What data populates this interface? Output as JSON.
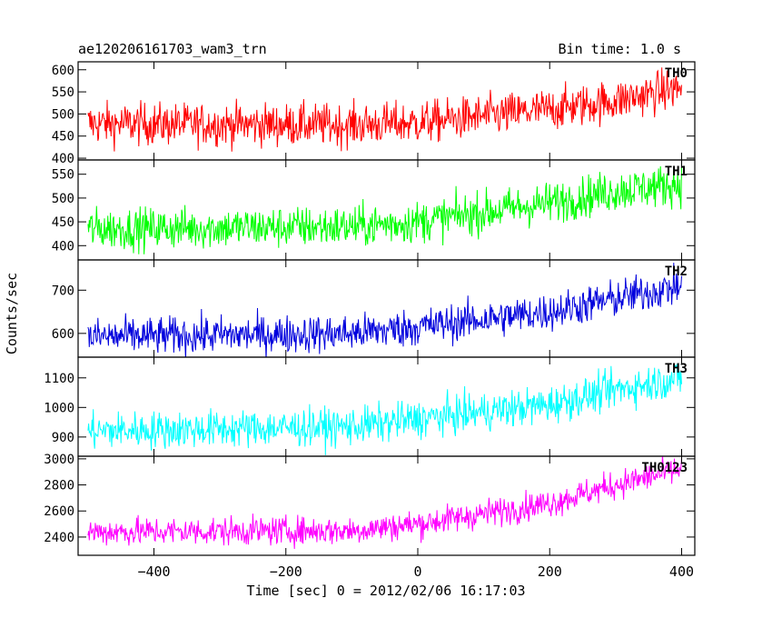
{
  "header": {
    "title": "ae120206161703_wam3_trn",
    "bin_time": "Bin time: 1.0 s"
  },
  "chart_data": {
    "type": "line",
    "xlabel": "Time [sec] 0 = 2012/02/06 16:17:03",
    "ylabel": "Counts/sec",
    "xlim": [
      -515,
      420
    ],
    "x_ticks": [
      -400,
      -200,
      0,
      200,
      400
    ],
    "x_ticklabels": [
      "−400",
      "−200",
      "0",
      "200",
      "400"
    ],
    "x_range": [
      -500,
      400
    ],
    "panels": [
      {
        "name": "TH0",
        "color": "#ff0000",
        "ylim": [
          396,
          618
        ],
        "y_ticks": [
          400,
          450,
          500,
          550,
          600
        ],
        "y_ticklabels": [
          "400",
          "450",
          "500",
          "550",
          "600"
        ],
        "trend": [
          [
            -500,
            478
          ],
          [
            -100,
            475
          ],
          [
            0,
            480
          ],
          [
            200,
            510
          ],
          [
            300,
            530
          ],
          [
            400,
            560
          ]
        ],
        "noise": 24
      },
      {
        "name": "TH1",
        "color": "#00ff00",
        "ylim": [
          370,
          580
        ],
        "y_ticks": [
          400,
          450,
          500,
          550
        ],
        "y_ticklabels": [
          "400",
          "450",
          "500",
          "550"
        ],
        "trend": [
          [
            -500,
            435
          ],
          [
            -100,
            440
          ],
          [
            0,
            450
          ],
          [
            200,
            490
          ],
          [
            300,
            515
          ],
          [
            400,
            530
          ]
        ],
        "noise": 22
      },
      {
        "name": "TH2",
        "color": "#0000dd",
        "ylim": [
          545,
          770
        ],
        "y_ticks": [
          600,
          700
        ],
        "y_ticklabels": [
          "600",
          "700"
        ],
        "trend": [
          [
            -500,
            592
          ],
          [
            -100,
            600
          ],
          [
            0,
            615
          ],
          [
            200,
            650
          ],
          [
            300,
            680
          ],
          [
            400,
            710
          ]
        ],
        "noise": 22
      },
      {
        "name": "TH3",
        "color": "#00ffff",
        "ylim": [
          835,
          1170
        ],
        "y_ticks": [
          900,
          1000,
          1100
        ],
        "y_ticklabels": [
          "900",
          "1000",
          "1100"
        ],
        "trend": [
          [
            -500,
            920
          ],
          [
            -100,
            935
          ],
          [
            0,
            960
          ],
          [
            200,
            1010
          ],
          [
            300,
            1060
          ],
          [
            400,
            1100
          ]
        ],
        "noise": 32
      },
      {
        "name": "TH0123",
        "color": "#ff00ff",
        "ylim": [
          2260,
          3020
        ],
        "y_ticks": [
          2400,
          2600,
          2800,
          3000
        ],
        "y_ticklabels": [
          "2400",
          "2600",
          "2800",
          "3000"
        ],
        "trend": [
          [
            -500,
            2440
          ],
          [
            -100,
            2450
          ],
          [
            0,
            2500
          ],
          [
            200,
            2660
          ],
          [
            300,
            2800
          ],
          [
            400,
            2920
          ]
        ],
        "noise": 55
      }
    ]
  }
}
